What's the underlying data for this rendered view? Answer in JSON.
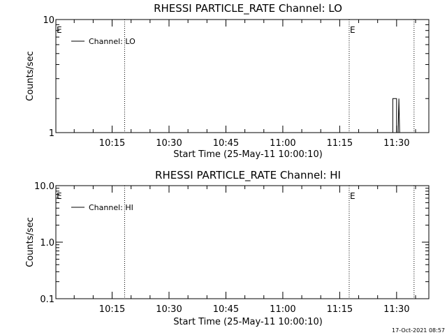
{
  "colors": {
    "background": "#ffffff",
    "foreground": "#000000"
  },
  "footer": {
    "timestamp": "17-Oct-2021 08:57"
  },
  "chart_data": [
    {
      "type": "line",
      "title": "RHESSI PARTICLE_RATE Channel: LO",
      "ylabel": "Counts/sec",
      "xlabel": "Start Time (25-May-11 10:00:10)",
      "y_scale": "log",
      "ylim": [
        1,
        10
      ],
      "y_ticks": [
        {
          "value": 1,
          "label": "1"
        },
        {
          "value": 10,
          "label": "10"
        }
      ],
      "x_unit": "minutes after 10:00",
      "xlim": [
        0.17,
        38.5
      ],
      "x_ticks": [
        {
          "value": 15,
          "label": "10:15"
        },
        {
          "value": 30,
          "label": "10:30"
        },
        {
          "value": 45,
          "label": "10:45"
        },
        {
          "value": 60,
          "label": "11:00"
        },
        {
          "value": 75,
          "label": "11:15"
        },
        {
          "value": 90,
          "label": "11:30"
        }
      ],
      "legend": {
        "position": "top-left"
      },
      "series": [
        {
          "name": "Channel: LO",
          "points": [
            [
              88.5,
              1
            ],
            [
              89.0,
              1
            ],
            [
              89.0,
              2
            ],
            [
              90.0,
              2
            ],
            [
              90.0,
              1
            ],
            [
              90.4,
              1
            ],
            [
              90.6,
              2
            ],
            [
              90.8,
              1
            ]
          ]
        }
      ],
      "vlines": [
        {
          "x": 18.3,
          "style": "dotted",
          "label": ""
        },
        {
          "x": 77.5,
          "style": "dotted",
          "label": "E"
        },
        {
          "x": 94.6,
          "style": "dotted",
          "label": ""
        }
      ],
      "corner_marker": "E"
    },
    {
      "type": "line",
      "title": "RHESSI PARTICLE_RATE Channel: HI",
      "ylabel": "Counts/sec",
      "xlabel": "Start Time (25-May-11 10:00:10)",
      "y_scale": "log",
      "ylim": [
        0.1,
        10
      ],
      "y_ticks": [
        {
          "value": 0.1,
          "label": "0.1"
        },
        {
          "value": 1,
          "label": "1.0"
        },
        {
          "value": 10,
          "label": "10.0"
        }
      ],
      "x_unit": "minutes after 10:00",
      "x_ticks": [
        {
          "value": 15,
          "label": "10:15"
        },
        {
          "value": 30,
          "label": "10:30"
        },
        {
          "value": 45,
          "label": "10:45"
        },
        {
          "value": 60,
          "label": "11:00"
        },
        {
          "value": 75,
          "label": "11:15"
        },
        {
          "value": 90,
          "label": "11:30"
        }
      ],
      "legend": {
        "position": "top-left"
      },
      "series": [
        {
          "name": "Channel: HI",
          "points": []
        }
      ],
      "vlines": [
        {
          "x": 18.3,
          "style": "dotted",
          "label": ""
        },
        {
          "x": 77.5,
          "style": "dotted",
          "label": "E"
        },
        {
          "x": 94.6,
          "style": "dotted",
          "label": ""
        }
      ],
      "corner_marker": "E"
    }
  ]
}
